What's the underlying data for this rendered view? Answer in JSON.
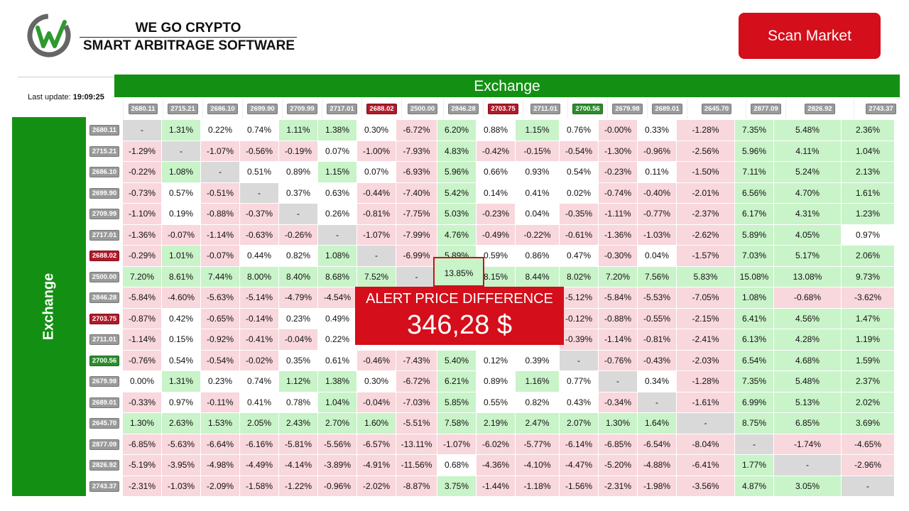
{
  "brand": {
    "line1": "WE GO CRYPTO",
    "line2": "SMART ARBITRAGE SOFTWARE"
  },
  "scan_button": "Scan Market",
  "last_update": {
    "label": "Last update:",
    "time": "19:09:25"
  },
  "axis": {
    "top": "Exchange",
    "left": "Exchange"
  },
  "colors": {
    "green": "#139013",
    "red": "#d40e1a",
    "pos": "#c9f3c9",
    "neg": "#f8d7dd",
    "diag": "#d9d9d9"
  },
  "columns": [
    {
      "label": "2680.11",
      "style": "gray"
    },
    {
      "label": "2715.21",
      "style": "gray"
    },
    {
      "label": "2686.10",
      "style": "gray"
    },
    {
      "label": "2699.90",
      "style": "gray"
    },
    {
      "label": "2709.99",
      "style": "gray"
    },
    {
      "label": "2717.01",
      "style": "gray"
    },
    {
      "label": "2688.02",
      "style": "red"
    },
    {
      "label": "2500.00",
      "style": "gray"
    },
    {
      "label": "2846.28",
      "style": "gray"
    },
    {
      "label": "2703.75",
      "style": "red"
    },
    {
      "label": "2711.01",
      "style": "gray"
    },
    {
      "label": "2700.56",
      "style": "green"
    },
    {
      "label": "2679.98",
      "style": "gray"
    },
    {
      "label": "2689.01",
      "style": "gray"
    },
    {
      "label": "2645.70",
      "style": "gray"
    },
    {
      "label": "2877.09",
      "style": "gray"
    },
    {
      "label": "2826.92",
      "style": "gray"
    },
    {
      "label": "2743.37",
      "style": "gray"
    }
  ],
  "rows": [
    {
      "label": "2680.11",
      "style": "gray",
      "cells": [
        "-",
        "1.31%",
        "0.22%",
        "0.74%",
        "1.11%",
        "1.38%",
        "0.30%",
        "-6.72%",
        "6.20%",
        "0.88%",
        "1.15%",
        "0.76%",
        "-0.00%",
        "0.33%",
        "-1.28%",
        "7.35%",
        "5.48%",
        "2.36%"
      ]
    },
    {
      "label": "2715.21",
      "style": "gray",
      "cells": [
        "-1.29%",
        "-",
        "-1.07%",
        "-0.56%",
        "-0.19%",
        "0.07%",
        "-1.00%",
        "-7.93%",
        "4.83%",
        "-0.42%",
        "-0.15%",
        "-0.54%",
        "-1.30%",
        "-0.96%",
        "-2.56%",
        "5.96%",
        "4.11%",
        "1.04%"
      ]
    },
    {
      "label": "2686.10",
      "style": "gray",
      "cells": [
        "-0.22%",
        "1.08%",
        "-",
        "0.51%",
        "0.89%",
        "1.15%",
        "0.07%",
        "-6.93%",
        "5.96%",
        "0.66%",
        "0.93%",
        "0.54%",
        "-0.23%",
        "0.11%",
        "-1.50%",
        "7.11%",
        "5.24%",
        "2.13%"
      ]
    },
    {
      "label": "2699.90",
      "style": "gray",
      "cells": [
        "-0.73%",
        "0.57%",
        "-0.51%",
        "-",
        "0.37%",
        "0.63%",
        "-0.44%",
        "-7.40%",
        "5.42%",
        "0.14%",
        "0.41%",
        "0.02%",
        "-0.74%",
        "-0.40%",
        "-2.01%",
        "6.56%",
        "4.70%",
        "1.61%"
      ]
    },
    {
      "label": "2709.99",
      "style": "gray",
      "cells": [
        "-1.10%",
        "0.19%",
        "-0.88%",
        "-0.37%",
        "-",
        "0.26%",
        "-0.81%",
        "-7.75%",
        "5.03%",
        "-0.23%",
        "0.04%",
        "-0.35%",
        "-1.11%",
        "-0.77%",
        "-2.37%",
        "6.17%",
        "4.31%",
        "1.23%"
      ]
    },
    {
      "label": "2717.01",
      "style": "gray",
      "cells": [
        "-1.36%",
        "-0.07%",
        "-1.14%",
        "-0.63%",
        "-0.26%",
        "-",
        "-1.07%",
        "-7.99%",
        "4.76%",
        "-0.49%",
        "-0.22%",
        "-0.61%",
        "-1.36%",
        "-1.03%",
        "-2.62%",
        "5.89%",
        "4.05%",
        "0.97%"
      ]
    },
    {
      "label": "2688.02",
      "style": "red",
      "cells": [
        "-0.29%",
        "1.01%",
        "-0.07%",
        "0.44%",
        "0.82%",
        "1.08%",
        "-",
        "-6.99%",
        "5.89%",
        "0.59%",
        "0.86%",
        "0.47%",
        "-0.30%",
        "0.04%",
        "-1.57%",
        "7.03%",
        "5.17%",
        "2.06%"
      ]
    },
    {
      "label": "2500.00",
      "style": "gray",
      "cells": [
        "7.20%",
        "8.61%",
        "7.44%",
        "8.00%",
        "8.40%",
        "8.68%",
        "7.52%",
        "-",
        "13.85%",
        "8.15%",
        "8.44%",
        "8.02%",
        "7.20%",
        "7.56%",
        "5.83%",
        "15.08%",
        "13.08%",
        "9.73%"
      ]
    },
    {
      "label": "2846.28",
      "style": "gray",
      "cells": [
        "-5.84%",
        "-4.60%",
        "-5.63%",
        "-5.14%",
        "-4.79%",
        "-4.54%",
        "",
        "",
        "",
        "",
        "",
        "-5.12%",
        "-5.84%",
        "-5.53%",
        "-7.05%",
        "1.08%",
        "-0.68%",
        "-3.62%"
      ]
    },
    {
      "label": "2703.75",
      "style": "red",
      "cells": [
        "-0.87%",
        "0.42%",
        "-0.65%",
        "-0.14%",
        "0.23%",
        "0.49%",
        "",
        "",
        "",
        "",
        "",
        "-0.12%",
        "-0.88%",
        "-0.55%",
        "-2.15%",
        "6.41%",
        "4.56%",
        "1.47%"
      ]
    },
    {
      "label": "2711.01",
      "style": "gray",
      "cells": [
        "-1.14%",
        "0.15%",
        "-0.92%",
        "-0.41%",
        "-0.04%",
        "0.22%",
        "",
        "",
        "",
        "",
        "",
        "-0.39%",
        "-1.14%",
        "-0.81%",
        "-2.41%",
        "6.13%",
        "4.28%",
        "1.19%"
      ]
    },
    {
      "label": "2700.56",
      "style": "green",
      "cells": [
        "-0.76%",
        "0.54%",
        "-0.54%",
        "-0.02%",
        "0.35%",
        "0.61%",
        "-0.46%",
        "-7.43%",
        "5.40%",
        "0.12%",
        "0.39%",
        "-",
        "-0.76%",
        "-0.43%",
        "-2.03%",
        "6.54%",
        "4.68%",
        "1.59%"
      ]
    },
    {
      "label": "2679.98",
      "style": "gray",
      "cells": [
        "0.00%",
        "1.31%",
        "0.23%",
        "0.74%",
        "1.12%",
        "1.38%",
        "0.30%",
        "-6.72%",
        "6.21%",
        "0.89%",
        "1.16%",
        "0.77%",
        "-",
        "0.34%",
        "-1.28%",
        "7.35%",
        "5.48%",
        "2.37%"
      ]
    },
    {
      "label": "2689.01",
      "style": "gray",
      "cells": [
        "-0.33%",
        "0.97%",
        "-0.11%",
        "0.41%",
        "0.78%",
        "1.04%",
        "-0.04%",
        "-7.03%",
        "5.85%",
        "0.55%",
        "0.82%",
        "0.43%",
        "-0.34%",
        "-",
        "-1.61%",
        "6.99%",
        "5.13%",
        "2.02%"
      ]
    },
    {
      "label": "2645.70",
      "style": "gray",
      "cells": [
        "1.30%",
        "2.63%",
        "1.53%",
        "2.05%",
        "2.43%",
        "2.70%",
        "1.60%",
        "-5.51%",
        "7.58%",
        "2.19%",
        "2.47%",
        "2.07%",
        "1.30%",
        "1.64%",
        "-",
        "8.75%",
        "6.85%",
        "3.69%"
      ]
    },
    {
      "label": "2877.09",
      "style": "gray",
      "cells": [
        "-6.85%",
        "-5.63%",
        "-6.64%",
        "-6.16%",
        "-5.81%",
        "-5.56%",
        "-6.57%",
        "-13.11%",
        "-1.07%",
        "-6.02%",
        "-5.77%",
        "-6.14%",
        "-6.85%",
        "-6.54%",
        "-8.04%",
        "-",
        "-1.74%",
        "-4.65%"
      ]
    },
    {
      "label": "2826.92",
      "style": "gray",
      "cells": [
        "-5.19%",
        "-3.95%",
        "-4.98%",
        "-4.49%",
        "-4.14%",
        "-3.89%",
        "-4.91%",
        "-11.56%",
        "0.68%",
        "-4.36%",
        "-4.10%",
        "-4.47%",
        "-5.20%",
        "-4.88%",
        "-6.41%",
        "1.77%",
        "-",
        "-2.96%"
      ]
    },
    {
      "label": "2743.37",
      "style": "gray",
      "cells": [
        "-2.31%",
        "-1.03%",
        "-2.09%",
        "-1.58%",
        "-1.22%",
        "-0.96%",
        "-2.02%",
        "-8.87%",
        "3.75%",
        "-1.44%",
        "-1.18%",
        "-1.56%",
        "-2.31%",
        "-1.98%",
        "-3.56%",
        "4.87%",
        "3.05%",
        "-"
      ]
    }
  ],
  "alert": {
    "title": "ALERT PRICE DIFFERENCE",
    "amount": "346,28 $",
    "highlight": "13.85%"
  }
}
